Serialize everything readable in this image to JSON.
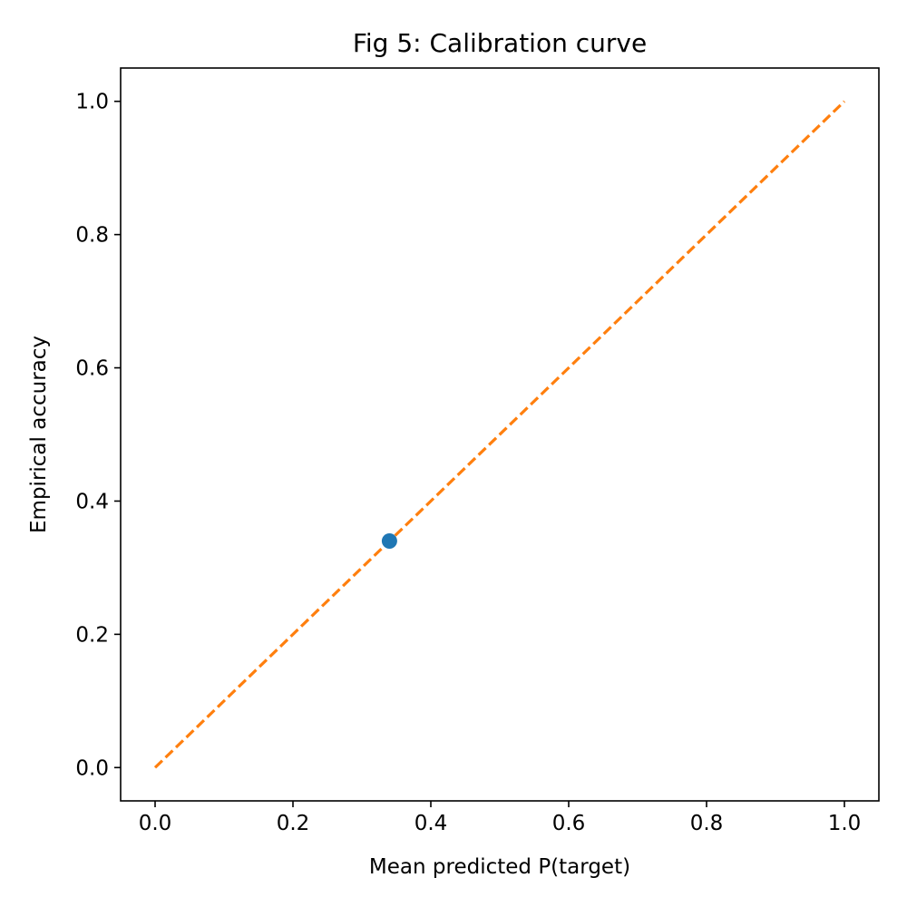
{
  "chart_data": {
    "type": "scatter",
    "title": "Fig 5: Calibration curve",
    "xlabel": "Mean predicted P(target)",
    "ylabel": "Empirical accuracy",
    "xlim": [
      -0.05,
      1.05
    ],
    "ylim": [
      -0.05,
      1.05
    ],
    "x_ticks": [
      "0.0",
      "0.2",
      "0.4",
      "0.6",
      "0.8",
      "1.0"
    ],
    "y_ticks": [
      "0.0",
      "0.2",
      "0.4",
      "0.6",
      "0.8",
      "1.0"
    ],
    "x_tick_values": [
      0.0,
      0.2,
      0.4,
      0.6,
      0.8,
      1.0
    ],
    "y_tick_values": [
      0.0,
      0.2,
      0.4,
      0.6,
      0.8,
      1.0
    ],
    "grid": false,
    "series": [
      {
        "type": "scatter",
        "x": [
          0.34
        ],
        "y": [
          0.34
        ],
        "color": "#1f77b4"
      },
      {
        "type": "line",
        "style": "dashed",
        "x": [
          0.0,
          1.0
        ],
        "y": [
          0.0,
          1.0
        ],
        "color": "#ff7f0e"
      }
    ]
  }
}
